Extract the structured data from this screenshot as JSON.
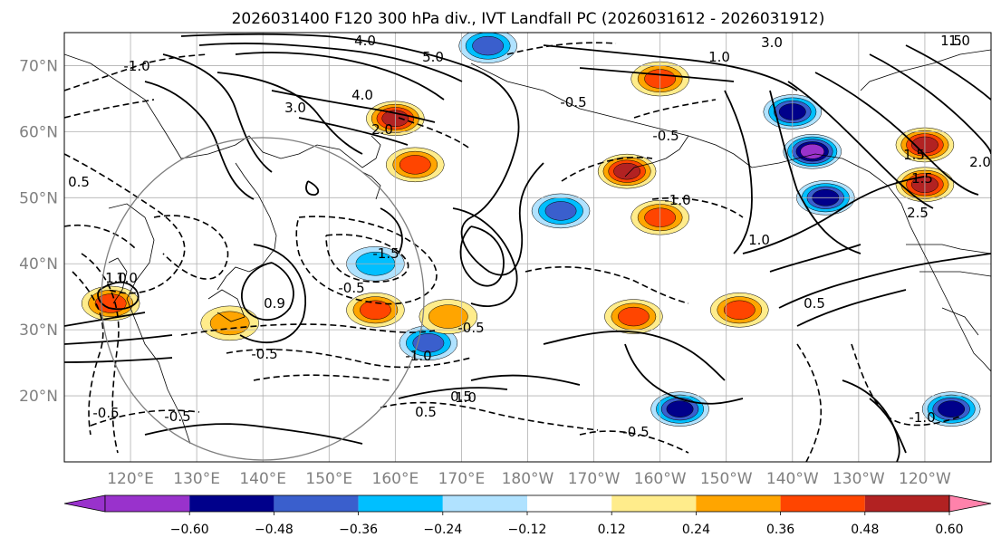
{
  "chart_data": {
    "type": "map-contour",
    "title": "2026031400 F120 300 hPa div., IVT Landfall PC (2026031612 - 2026031912)",
    "latitude_ticks": [
      "70°N",
      "60°N",
      "50°N",
      "40°N",
      "30°N",
      "20°N"
    ],
    "longitude_ticks": [
      "120°E",
      "130°E",
      "140°E",
      "150°E",
      "160°E",
      "170°E",
      "180°W",
      "170°W",
      "160°W",
      "150°W",
      "140°W",
      "130°W",
      "120°W"
    ],
    "lat_range": [
      10,
      75
    ],
    "lon_range_east": [
      110,
      250
    ],
    "colorbar": {
      "ticks": [
        "−0.60",
        "−0.48",
        "−0.36",
        "−0.24",
        "−0.12",
        "0.12",
        "0.24",
        "0.36",
        "0.48",
        "0.60"
      ],
      "colors": [
        "#9932CC",
        "#00008B",
        "#3A5FCD",
        "#00BFFF",
        "#B0E2FF",
        "#FFFFFF",
        "#FFEC8B",
        "#FFA500",
        "#FF4500",
        "#B22222",
        "#FF82AB"
      ],
      "extend": "both"
    },
    "contour_labels": [
      "4.0",
      "3.0",
      "5.0",
      "4.0",
      "3.0",
      "2.0",
      "1.0",
      "1.5",
      "1.0",
      "0.5",
      "0.5",
      "1.0",
      "1.5",
      "2.0",
      "2.5",
      "1.0",
      "1.5",
      "0.5",
      "-0.5",
      "-1.0",
      "-0.5",
      "-1.5",
      "-1.0",
      "-0.5",
      "-0.5",
      "-1.0",
      "-0.5",
      "-0.5",
      "1.0",
      "-0.5",
      "-0.5",
      "-1.0",
      "0.5",
      "0.9",
      "1.0"
    ],
    "divergence_patches": [
      {
        "lon": 160,
        "lat": 62,
        "value": 0.48
      },
      {
        "lon": 163,
        "lat": 55,
        "value": 0.36
      },
      {
        "lon": 195,
        "lat": 54,
        "value": 0.48
      },
      {
        "lon": 200,
        "lat": 47,
        "value": 0.36
      },
      {
        "lon": 185,
        "lat": 48,
        "value": -0.36
      },
      {
        "lon": 220,
        "lat": 63,
        "value": -0.48
      },
      {
        "lon": 223,
        "lat": 57,
        "value": -0.6
      },
      {
        "lon": 225,
        "lat": 50,
        "value": -0.48
      },
      {
        "lon": 240,
        "lat": 58,
        "value": 0.48
      },
      {
        "lon": 240,
        "lat": 52,
        "value": 0.48
      },
      {
        "lon": 200,
        "lat": 68,
        "value": 0.36
      },
      {
        "lon": 174,
        "lat": 73,
        "value": -0.36
      },
      {
        "lon": 212,
        "lat": 33,
        "value": 0.36
      },
      {
        "lon": 157,
        "lat": 33,
        "value": 0.36
      },
      {
        "lon": 165,
        "lat": 28,
        "value": -0.36
      },
      {
        "lon": 196,
        "lat": 32,
        "value": 0.36
      },
      {
        "lon": 203,
        "lat": 18,
        "value": -0.48
      },
      {
        "lon": 244,
        "lat": 18,
        "value": -0.48
      },
      {
        "lon": 168,
        "lat": 32,
        "value": 0.24
      },
      {
        "lon": 157,
        "lat": 40,
        "value": -0.24
      },
      {
        "lon": 135,
        "lat": 31,
        "value": 0.24
      },
      {
        "lon": 117,
        "lat": 34,
        "value": 0.36
      }
    ]
  }
}
